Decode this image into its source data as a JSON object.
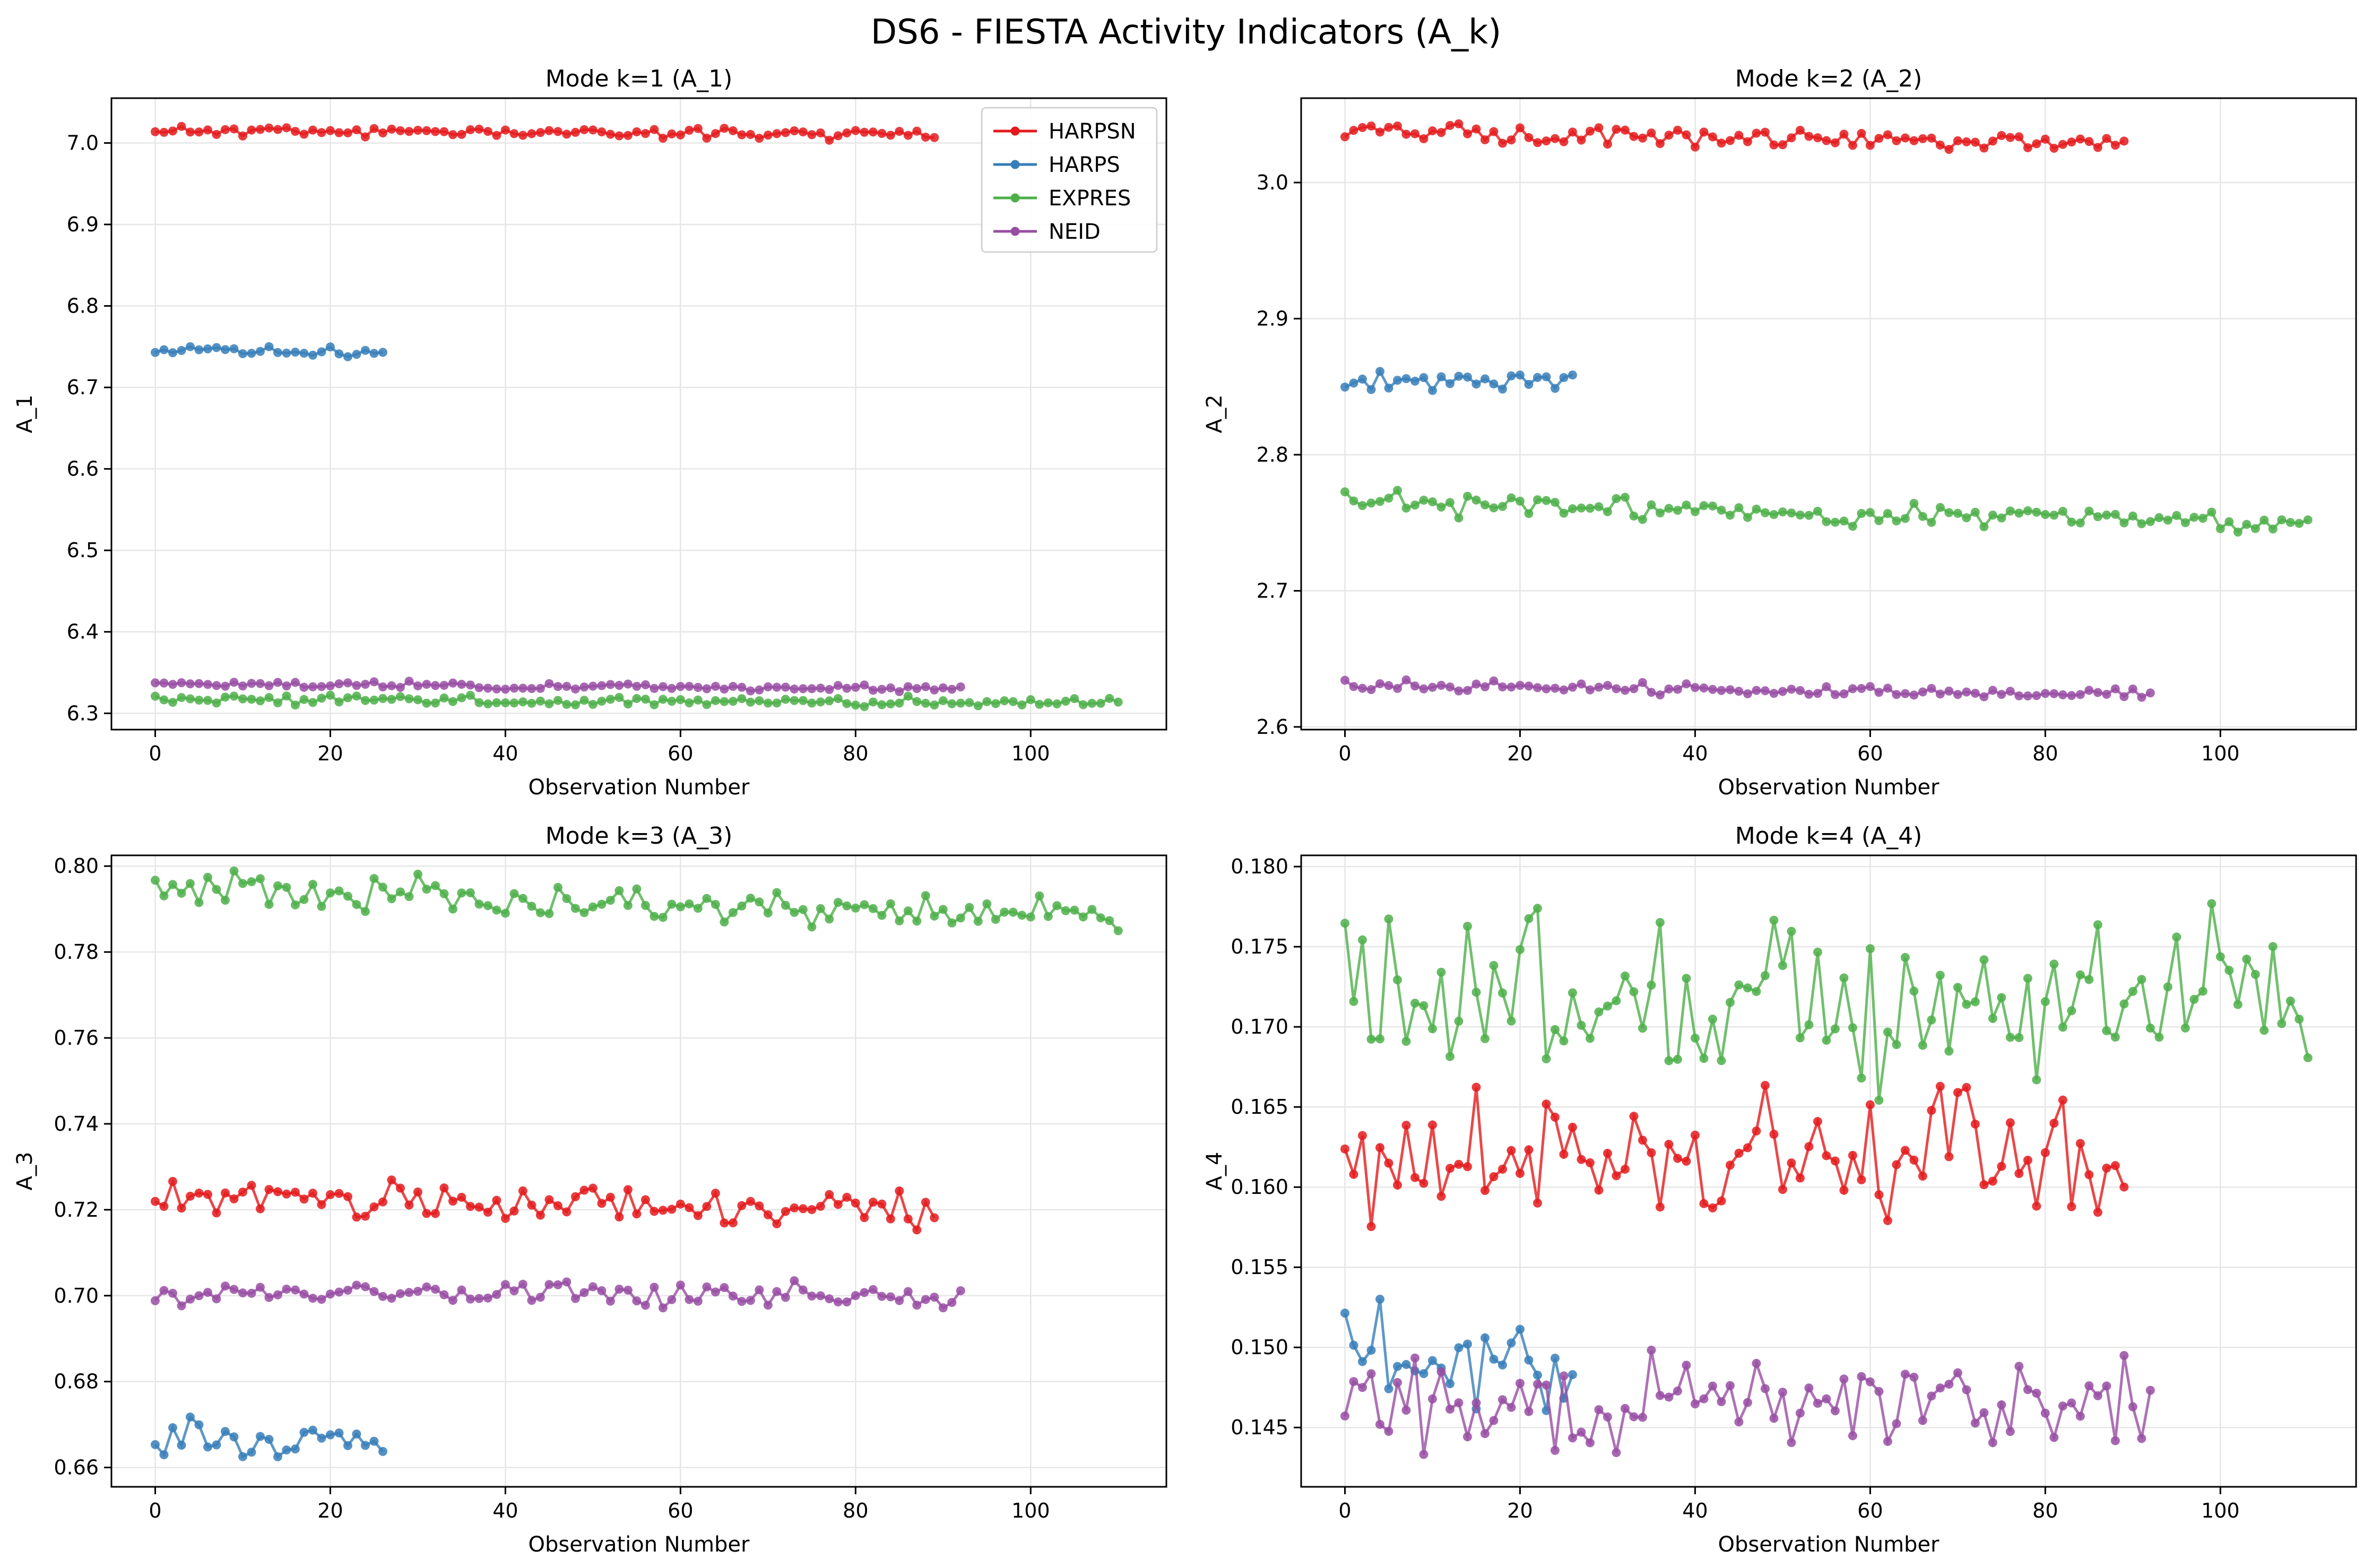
{
  "suptitle": "DS6 - FIESTA Activity Indicators (A_k)",
  "colors": {
    "HARPSN": "#e41a1c",
    "HARPS": "#377eb8",
    "EXPRES": "#4daf4a",
    "NEID": "#984ea3"
  },
  "chart_data": [
    {
      "type": "line",
      "title": "Mode k=1 (A_1)",
      "xlabel": "Observation Number",
      "ylabel": "A_1",
      "xlim": [
        -5,
        115.5
      ],
      "ylim": [
        6.28,
        7.055
      ],
      "xticks": [
        0,
        20,
        40,
        60,
        80,
        100
      ],
      "yticks": [
        6.3,
        6.4,
        6.5,
        6.6,
        6.7,
        6.8,
        6.9,
        7.0
      ],
      "ytick_labels": [
        "6.3",
        "6.4",
        "6.5",
        "6.6",
        "6.7",
        "6.8",
        "6.9",
        "7.0"
      ],
      "grid": true,
      "legend": {
        "placement": "top-right",
        "entries": [
          "HARPSN",
          "HARPS",
          "EXPRES",
          "NEID"
        ]
      },
      "series": [
        {
          "name": "HARPSN",
          "base": 7.015,
          "trend": -0.004,
          "amp": 0.003,
          "n": 90,
          "seed": 11
        },
        {
          "name": "HARPS",
          "base": 6.745,
          "trend": -0.002,
          "amp": 0.003,
          "n": 27,
          "seed": 12
        },
        {
          "name": "EXPRES",
          "base": 6.318,
          "trend": -0.006,
          "amp": 0.003,
          "n": 111,
          "seed": 13
        },
        {
          "name": "NEID",
          "base": 6.336,
          "trend": -0.006,
          "amp": 0.002,
          "n": 93,
          "seed": 14
        }
      ]
    },
    {
      "type": "line",
      "title": "Mode k=2 (A_2)",
      "xlabel": "Observation Number",
      "ylabel": "A_2",
      "xlim": [
        -5,
        115.5
      ],
      "ylim": [
        2.598,
        3.062
      ],
      "xticks": [
        0,
        20,
        40,
        60,
        80,
        100
      ],
      "yticks": [
        2.6,
        2.7,
        2.8,
        2.9,
        3.0
      ],
      "ytick_labels": [
        "2.6",
        "2.7",
        "2.8",
        "2.9",
        "3.0"
      ],
      "grid": true,
      "series": [
        {
          "name": "HARPSN",
          "base": 3.038,
          "trend": -0.01,
          "amp": 0.003,
          "n": 90,
          "seed": 21
        },
        {
          "name": "HARPS",
          "base": 2.855,
          "trend": 0.0,
          "amp": 0.003,
          "n": 27,
          "seed": 22
        },
        {
          "name": "EXPRES",
          "base": 2.765,
          "trend": -0.015,
          "amp": 0.004,
          "n": 111,
          "seed": 23
        },
        {
          "name": "NEID",
          "base": 2.631,
          "trend": -0.008,
          "amp": 0.002,
          "n": 93,
          "seed": 24
        }
      ]
    },
    {
      "type": "line",
      "title": "Mode k=3 (A_3)",
      "xlabel": "Observation Number",
      "ylabel": "A_3",
      "xlim": [
        -5,
        115.5
      ],
      "ylim": [
        0.6555,
        0.8025
      ],
      "xticks": [
        0,
        20,
        40,
        60,
        80,
        100
      ],
      "yticks": [
        0.66,
        0.68,
        0.7,
        0.72,
        0.74,
        0.76,
        0.78,
        0.8
      ],
      "ytick_labels": [
        "0.66",
        "0.68",
        "0.70",
        "0.72",
        "0.74",
        "0.76",
        "0.78",
        "0.80"
      ],
      "grid": true,
      "series": [
        {
          "name": "HARPSN",
          "base": 0.723,
          "trend": -0.003,
          "amp": 0.002,
          "n": 90,
          "seed": 31
        },
        {
          "name": "HARPS",
          "base": 0.667,
          "trend": 0.0,
          "amp": 0.002,
          "n": 27,
          "seed": 32
        },
        {
          "name": "EXPRES",
          "base": 0.795,
          "trend": -0.007,
          "amp": 0.002,
          "n": 111,
          "seed": 33
        },
        {
          "name": "NEID",
          "base": 0.701,
          "trend": -0.001,
          "amp": 0.0015,
          "n": 93,
          "seed": 34
        }
      ]
    },
    {
      "type": "line",
      "title": "Mode k=4 (A_4)",
      "xlabel": "Observation Number",
      "ylabel": "A_4",
      "xlim": [
        -5,
        115.5
      ],
      "ylim": [
        0.1413,
        0.1807
      ],
      "xticks": [
        0,
        20,
        40,
        60,
        80,
        100
      ],
      "yticks": [
        0.145,
        0.15,
        0.155,
        0.16,
        0.165,
        0.17,
        0.175,
        0.18
      ],
      "ytick_labels": [
        "0.145",
        "0.150",
        "0.155",
        "0.160",
        "0.165",
        "0.170",
        "0.175",
        "0.180"
      ],
      "grid": true,
      "series": [
        {
          "name": "HARPSN",
          "base": 0.1615,
          "trend": 0.0,
          "amp": 0.0022,
          "n": 90,
          "seed": 41
        },
        {
          "name": "HARPS",
          "base": 0.149,
          "trend": 0.0,
          "amp": 0.0015,
          "n": 27,
          "seed": 42
        },
        {
          "name": "EXPRES",
          "base": 0.172,
          "trend": 0.0,
          "amp": 0.0025,
          "n": 111,
          "seed": 43
        },
        {
          "name": "NEID",
          "base": 0.1465,
          "trend": 0.0,
          "amp": 0.0015,
          "n": 93,
          "seed": 44
        }
      ]
    }
  ]
}
